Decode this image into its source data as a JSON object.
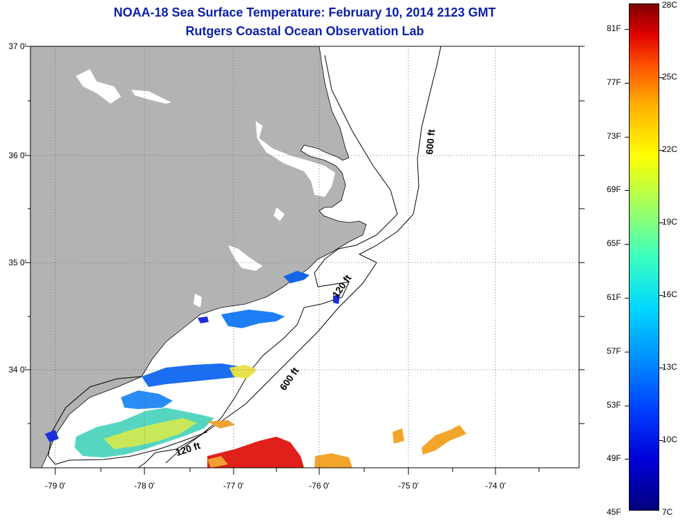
{
  "title": {
    "line1": "NOAA-18 Sea Surface Temperature:  February 10, 2014 2123 GMT",
    "line2": "Rutgers Coastal Ocean Observation Lab"
  },
  "map": {
    "y_labels": [
      "37 0'",
      "36 0'",
      "35 0'",
      "34 0'"
    ],
    "x_labels": [
      "-79 0'",
      "-78 0'",
      "-77 0'",
      "-76 0'",
      "-75 0'",
      "-74 0'"
    ],
    "contour_labels": {
      "c600_north": "600 ft",
      "c600_south": "600 ft",
      "c120_north": "120 ft",
      "c120_south": "120 ft"
    },
    "colors": {
      "land": "#b3b3b3",
      "ocean": "#ffffff",
      "title": "#0a1fa8"
    }
  },
  "colorbar": {
    "fahrenheit": [
      "81F",
      "77F",
      "73F",
      "69F",
      "65F",
      "61F",
      "57F",
      "53F",
      "49F",
      "45F"
    ],
    "celsius": [
      "28C",
      "25C",
      "22C",
      "19C",
      "16C",
      "13C",
      "10C",
      "7C"
    ]
  }
}
